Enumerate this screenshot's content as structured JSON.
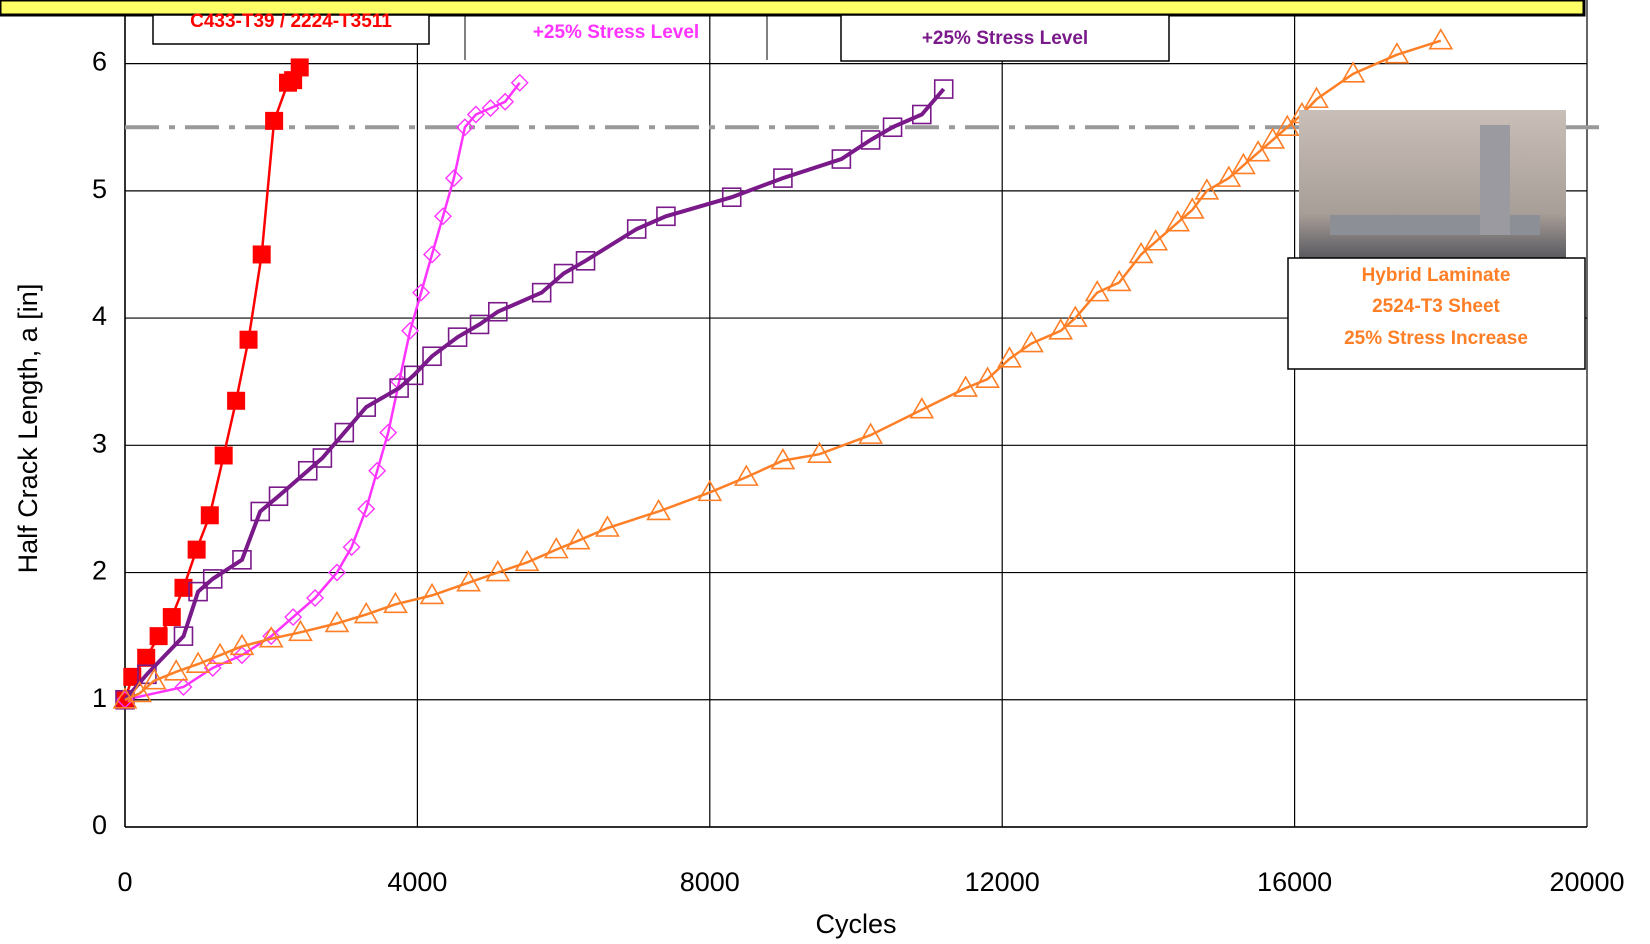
{
  "chart_data": {
    "type": "line",
    "x_label": "Cycles",
    "y_label": "Half Crack Length, a [in]",
    "xlim": [
      0,
      20000
    ],
    "xticks": [
      0,
      4000,
      8000,
      12000,
      16000,
      20000
    ],
    "ylim": [
      0,
      6.5
    ],
    "yticks": [
      0,
      1,
      2,
      3,
      4,
      5,
      6
    ],
    "grid": true,
    "reference_line": 5.5,
    "annotations": [
      {
        "text": "C433-T39 / 2224-T3511",
        "color": "#ff0000"
      },
      {
        "text": "+25% Stress Level",
        "color": "#ff33ff"
      },
      {
        "text": "+25% Stress Level",
        "color": "#7a1a8a"
      },
      {
        "text": "Hybrid Laminate",
        "color": "#ff7f27"
      },
      {
        "text": "2524-T3 Sheet",
        "color": "#ff7f27"
      },
      {
        "text": "25% Stress Increase",
        "color": "#ff7f27"
      }
    ],
    "series": [
      {
        "color": "#ff0000",
        "marker": "square-filled",
        "x": [
          0,
          100,
          290,
          460,
          640,
          800,
          980,
          1160,
          1350,
          1520,
          1690,
          1870,
          2040,
          2230,
          2300,
          2390
        ],
        "values": [
          1.0,
          1.18,
          1.33,
          1.5,
          1.65,
          1.88,
          2.18,
          2.45,
          2.92,
          3.35,
          3.83,
          4.5,
          5.55,
          5.85,
          5.87,
          5.97
        ]
      },
      {
        "color": "#ff33ff",
        "marker": "diamond",
        "x": [
          0,
          800,
          1200,
          1600,
          2000,
          2300,
          2600,
          2900,
          3100,
          3300,
          3450,
          3600,
          3750,
          3900,
          4050,
          4200,
          4350,
          4500,
          4650,
          4800,
          5000,
          5200,
          5400
        ],
        "values": [
          1.0,
          1.1,
          1.25,
          1.35,
          1.5,
          1.65,
          1.8,
          2.0,
          2.2,
          2.5,
          2.8,
          3.1,
          3.5,
          3.9,
          4.2,
          4.5,
          4.8,
          5.1,
          5.5,
          5.6,
          5.65,
          5.7,
          5.85
        ]
      },
      {
        "color": "#7a1a8a",
        "marker": "square",
        "x": [
          0,
          300,
          800,
          1000,
          1200,
          1600,
          1850,
          2100,
          2500,
          2700,
          3000,
          3300,
          3750,
          3950,
          4200,
          4550,
          4850,
          5100,
          5700,
          6000,
          6300,
          7000,
          7400,
          8300,
          9000,
          9800,
          10200,
          10500,
          10900,
          11200
        ],
        "values": [
          1.0,
          1.2,
          1.5,
          1.85,
          1.95,
          2.1,
          2.48,
          2.6,
          2.8,
          2.9,
          3.1,
          3.3,
          3.45,
          3.55,
          3.7,
          3.85,
          3.95,
          4.05,
          4.2,
          4.35,
          4.45,
          4.7,
          4.8,
          4.95,
          5.1,
          5.25,
          5.4,
          5.5,
          5.6,
          5.8
        ]
      },
      {
        "color": "#ff7f27",
        "marker": "triangle",
        "x": [
          0,
          200,
          400,
          700,
          1000,
          1300,
          1600,
          2000,
          2400,
          2900,
          3300,
          3700,
          4200,
          4700,
          5100,
          5500,
          5900,
          6200,
          6600,
          7300,
          8000,
          8500,
          9000,
          9500,
          10200,
          10900,
          11500,
          11800,
          12100,
          12400,
          12800,
          13000,
          13300,
          13600,
          13900,
          14100,
          14400,
          14600,
          14800,
          15100,
          15300,
          15500,
          15700,
          15900,
          16100,
          16300,
          16800,
          17400,
          18000
        ],
        "values": [
          1.0,
          1.05,
          1.15,
          1.22,
          1.28,
          1.35,
          1.42,
          1.48,
          1.53,
          1.6,
          1.67,
          1.75,
          1.82,
          1.92,
          2.0,
          2.08,
          2.18,
          2.25,
          2.35,
          2.48,
          2.63,
          2.75,
          2.88,
          2.93,
          3.08,
          3.28,
          3.45,
          3.52,
          3.68,
          3.8,
          3.9,
          4.0,
          4.2,
          4.28,
          4.5,
          4.6,
          4.75,
          4.85,
          5.0,
          5.1,
          5.2,
          5.3,
          5.4,
          5.5,
          5.6,
          5.72,
          5.92,
          6.07,
          6.18
        ]
      }
    ]
  }
}
